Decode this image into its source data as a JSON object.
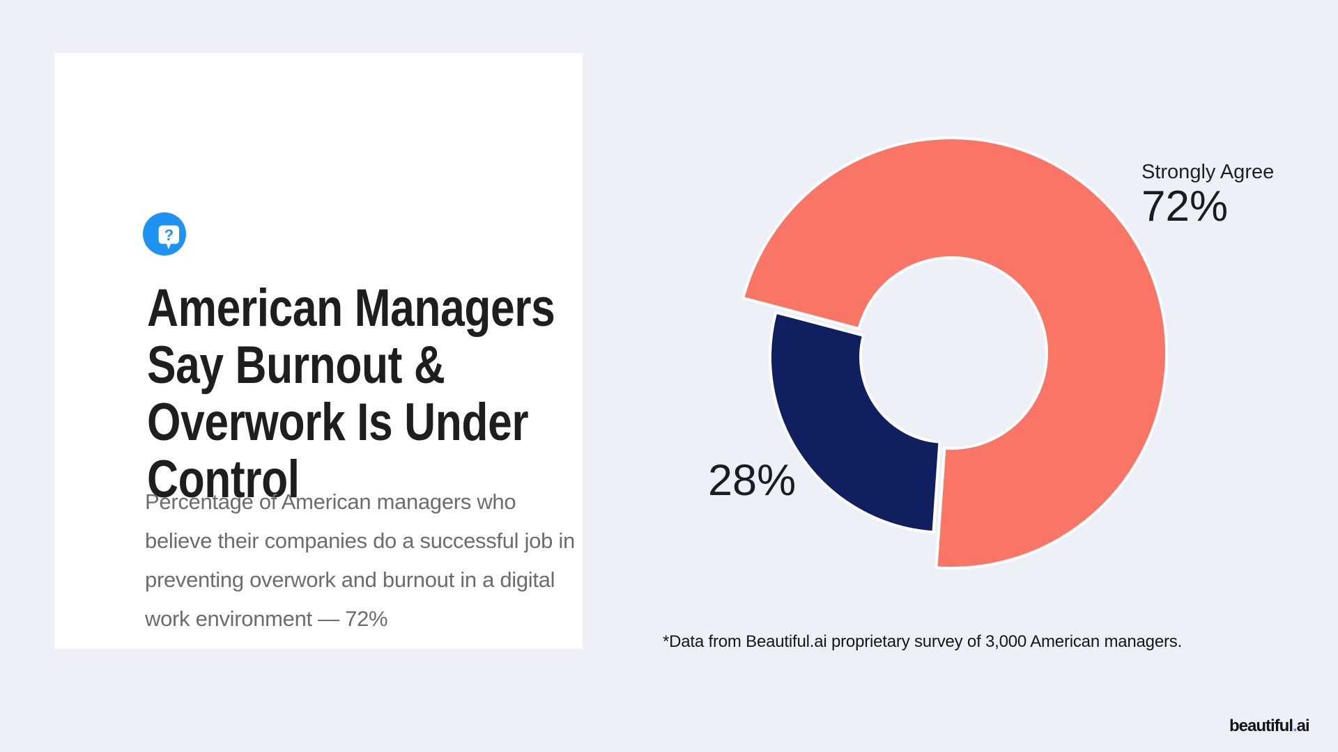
{
  "page": {
    "background_color": "#edf1f7"
  },
  "card": {
    "icon": {
      "name": "question-bubble",
      "bg_color": "#1e93f2",
      "glyph": "?"
    },
    "title": "American Managers\nSay Burnout &\nOverwork Is Under\nControl",
    "description": "Percentage of American managers who\nbelieve their companies do a successful job in\npreventing overwork and burnout in a digital\nwork environment — 72%"
  },
  "chart_data": {
    "type": "pie",
    "subtype": "donut",
    "title": "",
    "slices": [
      {
        "label": "Strongly Agree",
        "value": 72,
        "value_display": "72%",
        "color": "#f97666"
      },
      {
        "label": "",
        "value": 28,
        "value_display": "28%",
        "color": "#101f60"
      }
    ],
    "layout": {
      "center": [
        367,
        373
      ],
      "start_angle_deg": 284.8,
      "clockwise": true,
      "gap_stroke_color": "#ffffff",
      "gap_stroke_width": 4,
      "slice_geometry": [
        {
          "outer_radius": 309,
          "inner_radius": 137,
          "offset": [
            8,
            -6
          ]
        },
        {
          "outer_radius": 252,
          "inner_radius": 122,
          "offset": [
            0,
            0
          ]
        }
      ],
      "legend": "none",
      "labels": "outside-callouts"
    }
  },
  "footnote": "*Data from Beautiful.ai proprietary survey of 3,000 American managers.",
  "logo": {
    "word": "beautiful",
    "dot": ".",
    "suffix": "ai",
    "dot_color": "#3f8cf3"
  }
}
